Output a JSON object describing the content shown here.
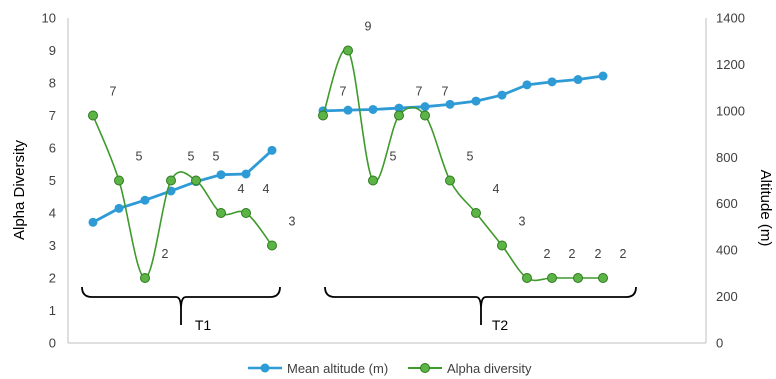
{
  "chart_data": {
    "type": "line",
    "y_left": {
      "label": "Alpha Diversity",
      "min": 0,
      "max": 10,
      "step": 1
    },
    "y_right": {
      "label": "Altitude (m)",
      "min": 0,
      "max": 1400,
      "step": 200
    },
    "groups": [
      {
        "name": "T1",
        "points": 8
      },
      {
        "name": "T2",
        "points": 12
      }
    ],
    "series": [
      {
        "name": "Mean altitude (m)",
        "axis": "right",
        "color": "#2e9bd6",
        "smooth": false,
        "segments": [
          [
            520,
            580,
            615,
            655,
            695,
            725,
            728,
            830
          ],
          [
            1000,
            1003,
            1006,
            1012,
            1018,
            1028,
            1042,
            1068,
            1112,
            1125,
            1135,
            1150
          ]
        ]
      },
      {
        "name": "Alpha diversity",
        "axis": "left",
        "color": "#3f9a2c",
        "smooth": true,
        "segments": [
          [
            7,
            5,
            2,
            5,
            5,
            4,
            4,
            3
          ],
          [
            7,
            9,
            5,
            7,
            7,
            5,
            4,
            3,
            2,
            2,
            2,
            2
          ]
        ],
        "data_labels": [
          [
            "7",
            "5",
            "2",
            "5",
            "5",
            "4",
            "4",
            "3"
          ],
          [
            "7",
            "9",
            "5",
            "7",
            "7",
            "5",
            "4",
            "3",
            "2",
            "2",
            "2",
            "2"
          ]
        ]
      }
    ]
  }
}
